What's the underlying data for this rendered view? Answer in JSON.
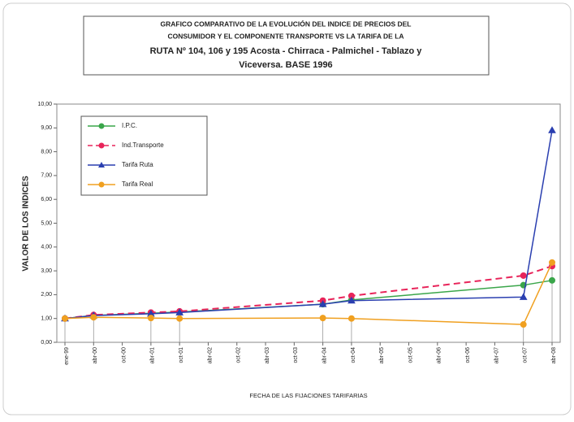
{
  "chart_data": {
    "type": "line",
    "title": [
      "GRAFICO COMPARATIVO DE LA EVOLUCIÓN DEL INDICE DE PRECIOS DEL",
      "CONSUMIDOR Y EL COMPONENTE TRANSPORTE VS LA TARIFA DE LA",
      "RUTA Nº 104, 106 y 195 Acosta - Chirraca - Palmichel - Tablazo y",
      "Viceversa.  BASE 1996"
    ],
    "y_label": "VALOR DE LOS INDICES",
    "x_label": "FECHA DE LAS FIJACIONES TARIFARIAS",
    "categories": [
      "ene-99",
      "abr-00",
      "oct-00",
      "abr-01",
      "oct-01",
      "abr-02",
      "oct-02",
      "abr-03",
      "oct-03",
      "abr-04",
      "oct-04",
      "abr-05",
      "oct-05",
      "abr-06",
      "oct-06",
      "abr-07",
      "oct-07",
      "abr-08"
    ],
    "x": [
      "ene-99",
      "abr-00",
      "abr-01",
      "oct-01",
      "abr-04",
      "oct-04",
      "oct-07",
      "abr-08"
    ],
    "series": [
      {
        "name": "I.P.C.",
        "color": "#3aa64a",
        "dash": false,
        "marker": "circle",
        "values": [
          1.0,
          1.13,
          1.22,
          1.27,
          1.6,
          1.78,
          2.4,
          2.6
        ]
      },
      {
        "name": "Ind.Transporte",
        "color": "#e8245a",
        "dash": true,
        "marker": "circle",
        "values": [
          1.0,
          1.15,
          1.25,
          1.3,
          1.75,
          1.95,
          2.8,
          3.2
        ]
      },
      {
        "name": "Tarifa Ruta",
        "color": "#2a3fb0",
        "dash": false,
        "marker": "triangle",
        "values": [
          1.0,
          1.12,
          1.2,
          1.25,
          1.6,
          1.75,
          1.9,
          8.9
        ]
      },
      {
        "name": "Tarifa Real",
        "color": "#f0a020",
        "dash": false,
        "marker": "circle",
        "values": [
          1.0,
          1.05,
          1.02,
          1.0,
          1.02,
          1.0,
          0.75,
          3.35
        ]
      }
    ],
    "ylim": [
      0,
      10
    ],
    "yticks": [
      {
        "value": 0,
        "label": "0,00"
      },
      {
        "value": 1,
        "label": "1,00"
      },
      {
        "value": 2,
        "label": "2,00"
      },
      {
        "value": 3,
        "label": "3,00"
      },
      {
        "value": 4,
        "label": "4,00"
      },
      {
        "value": 5,
        "label": "5,00"
      },
      {
        "value": 6,
        "label": "6,00"
      },
      {
        "value": 7,
        "label": "7,00"
      },
      {
        "value": 8,
        "label": "8,00"
      },
      {
        "value": 9,
        "label": "9,00"
      },
      {
        "value": 10,
        "label": "10,00"
      }
    ],
    "legend": "upper left"
  }
}
